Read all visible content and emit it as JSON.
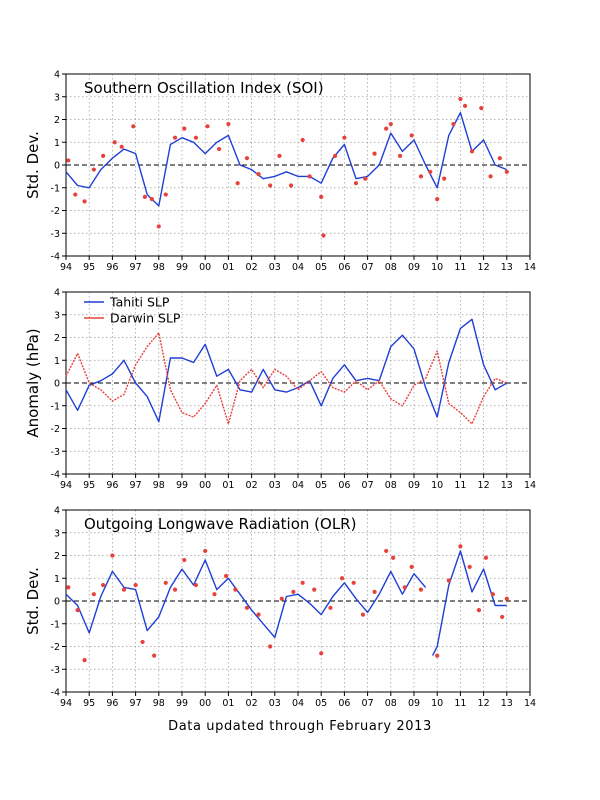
{
  "footer": "Data updated through February 2013",
  "colors": {
    "blue": "#1f3fd6",
    "red": "#e8403a",
    "grid": "#9a9a9a"
  },
  "chart_data": [
    {
      "type": "line",
      "title": "Southern Oscillation Index (SOI)",
      "ylabel": "Std. Dev.",
      "xlim": [
        94,
        114
      ],
      "ylim": [
        -4,
        4
      ],
      "x_tick_labels": [
        "94",
        "95",
        "96",
        "97",
        "98",
        "99",
        "00",
        "01",
        "02",
        "03",
        "04",
        "05",
        "06",
        "07",
        "08",
        "09",
        "10",
        "11",
        "12",
        "13",
        "14"
      ],
      "y_tick_labels": [
        "-4",
        "-3",
        "-2",
        "-1",
        "0",
        "1",
        "2",
        "3",
        "4"
      ],
      "grid": true,
      "series": [
        {
          "style": "line",
          "color": "#1f3fd6",
          "x": [
            94.0,
            94.5,
            95.0,
            95.5,
            96.0,
            96.5,
            97.0,
            97.5,
            98.0,
            98.5,
            99.0,
            99.5,
            100.0,
            100.5,
            101.0,
            101.5,
            102.0,
            102.5,
            103.0,
            103.5,
            104.0,
            104.5,
            105.0,
            105.5,
            106.0,
            106.5,
            107.0,
            107.5,
            108.0,
            108.5,
            109.0,
            109.5,
            110.0,
            110.5,
            111.0,
            111.5,
            112.0,
            112.5,
            113.0
          ],
          "y": [
            -0.3,
            -0.9,
            -1.0,
            -0.2,
            0.3,
            0.7,
            0.5,
            -1.3,
            -1.8,
            0.9,
            1.2,
            1.0,
            0.5,
            1.0,
            1.3,
            0.0,
            -0.2,
            -0.6,
            -0.5,
            -0.3,
            -0.5,
            -0.5,
            -0.8,
            0.3,
            0.9,
            -0.6,
            -0.5,
            0.0,
            1.4,
            0.6,
            1.1,
            0.0,
            -1.0,
            1.3,
            2.3,
            0.6,
            1.1,
            0.0,
            -0.2
          ]
        },
        {
          "style": "points",
          "color": "#e8403a",
          "x": [
            94.1,
            94.4,
            94.8,
            95.2,
            95.6,
            96.1,
            96.4,
            96.9,
            97.4,
            97.7,
            98.0,
            98.3,
            98.7,
            99.1,
            99.6,
            100.1,
            100.6,
            101.0,
            101.4,
            101.8,
            102.3,
            102.8,
            103.2,
            103.7,
            104.2,
            104.5,
            105.0,
            105.1,
            105.6,
            106.0,
            106.5,
            106.9,
            107.3,
            107.8,
            108.0,
            108.4,
            108.9,
            109.3,
            109.7,
            110.0,
            110.3,
            110.7,
            111.0,
            111.2,
            111.5,
            111.9,
            112.3,
            112.7,
            113.0
          ],
          "y": [
            0.2,
            -1.3,
            -1.6,
            -0.2,
            0.4,
            1.0,
            0.8,
            1.7,
            -1.4,
            -1.5,
            -2.7,
            -1.3,
            1.2,
            1.6,
            1.2,
            1.7,
            0.7,
            1.8,
            -0.8,
            0.3,
            -0.4,
            -0.9,
            0.4,
            -0.9,
            1.1,
            -0.5,
            -1.4,
            -3.1,
            0.4,
            1.2,
            -0.8,
            -0.6,
            0.5,
            1.6,
            1.8,
            0.4,
            1.3,
            -0.5,
            -0.3,
            -1.5,
            -0.6,
            1.8,
            2.9,
            2.6,
            0.6,
            2.5,
            -0.5,
            0.3,
            -0.3
          ]
        }
      ]
    },
    {
      "type": "line",
      "title": "",
      "ylabel": "Anomaly (hPa)",
      "xlim": [
        94,
        114
      ],
      "ylim": [
        -4,
        4
      ],
      "x_tick_labels": [
        "94",
        "95",
        "96",
        "97",
        "98",
        "99",
        "00",
        "01",
        "02",
        "03",
        "04",
        "05",
        "06",
        "07",
        "08",
        "09",
        "10",
        "11",
        "12",
        "13",
        "14"
      ],
      "y_tick_labels": [
        "-4",
        "-3",
        "-2",
        "-1",
        "0",
        "1",
        "2",
        "3",
        "4"
      ],
      "grid": true,
      "legend": "top-left",
      "series": [
        {
          "name": "Tahiti SLP",
          "style": "line",
          "color": "#1f3fd6",
          "x": [
            94.0,
            94.5,
            95.0,
            95.5,
            96.0,
            96.5,
            97.0,
            97.5,
            98.0,
            98.5,
            99.0,
            99.5,
            100.0,
            100.5,
            101.0,
            101.5,
            102.0,
            102.5,
            103.0,
            103.5,
            104.0,
            104.5,
            105.0,
            105.5,
            106.0,
            106.5,
            107.0,
            107.5,
            108.0,
            108.5,
            109.0,
            109.5,
            110.0,
            110.5,
            111.0,
            111.5,
            112.0,
            112.5,
            113.0
          ],
          "y": [
            -0.3,
            -1.2,
            -0.1,
            0.1,
            0.4,
            1.0,
            0.0,
            -0.6,
            -1.7,
            1.1,
            1.1,
            0.9,
            1.7,
            0.3,
            0.6,
            -0.3,
            -0.4,
            0.6,
            -0.3,
            -0.4,
            -0.2,
            0.1,
            -1.0,
            0.2,
            0.8,
            0.1,
            0.2,
            0.1,
            1.6,
            2.1,
            1.5,
            -0.2,
            -1.5,
            0.9,
            2.4,
            2.8,
            0.8,
            -0.3,
            0.0
          ]
        },
        {
          "name": "Darwin SLP",
          "style": "line",
          "color": "#e8403a",
          "x": [
            94.0,
            94.5,
            95.0,
            95.5,
            96.0,
            96.5,
            97.0,
            97.5,
            98.0,
            98.5,
            99.0,
            99.5,
            100.0,
            100.5,
            101.0,
            101.5,
            102.0,
            102.5,
            103.0,
            103.5,
            104.0,
            104.5,
            105.0,
            105.5,
            106.0,
            106.5,
            107.0,
            107.5,
            108.0,
            108.5,
            109.0,
            109.5,
            110.0,
            110.5,
            111.0,
            111.5,
            112.0,
            112.5,
            113.0
          ],
          "y": [
            0.3,
            1.3,
            0.0,
            -0.3,
            -0.8,
            -0.5,
            0.8,
            1.6,
            2.2,
            -0.3,
            -1.3,
            -1.5,
            -0.9,
            -0.1,
            -1.8,
            0.1,
            0.6,
            -0.2,
            0.6,
            0.3,
            -0.3,
            0.1,
            0.5,
            -0.2,
            -0.4,
            0.1,
            -0.3,
            0.1,
            -0.7,
            -1.0,
            -0.1,
            0.2,
            1.4,
            -0.9,
            -1.3,
            -1.8,
            -0.6,
            0.2,
            0.0
          ]
        }
      ]
    },
    {
      "type": "line",
      "title": "Outgoing Longwave Radiation (OLR)",
      "ylabel": "Std. Dev.",
      "xlim": [
        94,
        114
      ],
      "ylim": [
        -4,
        4
      ],
      "x_tick_labels": [
        "94",
        "95",
        "96",
        "97",
        "98",
        "99",
        "00",
        "01",
        "02",
        "03",
        "04",
        "05",
        "06",
        "07",
        "08",
        "09",
        "10",
        "11",
        "12",
        "13",
        "14"
      ],
      "y_tick_labels": [
        "-4",
        "-3",
        "-2",
        "-1",
        "0",
        "1",
        "2",
        "3",
        "4"
      ],
      "grid": true,
      "series": [
        {
          "style": "line",
          "color": "#1f3fd6",
          "segments": [
            {
              "x": [
                94.0,
                94.5,
                95.0,
                95.5,
                96.0,
                96.5,
                97.0,
                97.5,
                98.0,
                98.5,
                99.0,
                99.5,
                100.0,
                100.5,
                101.0,
                101.5,
                102.0,
                102.5,
                103.0,
                103.5,
                104.0,
                104.5,
                105.0,
                105.5,
                106.0,
                106.5,
                107.0,
                107.5,
                108.0,
                108.5,
                109.0,
                109.5
              ],
              "y": [
                0.3,
                -0.2,
                -1.4,
                0.2,
                1.3,
                0.6,
                0.5,
                -1.3,
                -0.7,
                0.6,
                1.4,
                0.7,
                1.8,
                0.5,
                1.0,
                0.3,
                -0.4,
                -1.0,
                -1.6,
                0.2,
                0.3,
                -0.1,
                -0.6,
                0.2,
                0.8,
                0.1,
                -0.5,
                0.3,
                1.3,
                0.3,
                1.2,
                0.6
              ]
            },
            {
              "x": [
                109.8,
                110.0,
                110.5,
                111.0,
                111.5,
                112.0,
                112.5,
                113.0
              ],
              "y": [
                -2.4,
                -2.0,
                0.7,
                2.2,
                0.4,
                1.4,
                -0.2,
                -0.2
              ]
            }
          ]
        },
        {
          "style": "points",
          "color": "#e8403a",
          "x": [
            94.1,
            94.5,
            94.8,
            95.2,
            95.6,
            96.0,
            96.5,
            97.0,
            97.3,
            97.8,
            98.3,
            98.7,
            99.1,
            99.6,
            100.0,
            100.4,
            100.9,
            101.3,
            101.8,
            102.3,
            102.8,
            103.3,
            103.8,
            104.2,
            104.7,
            105.0,
            105.4,
            105.9,
            106.4,
            106.8,
            107.3,
            107.8,
            108.1,
            108.6,
            108.9,
            109.3,
            110.0,
            110.5,
            111.0,
            111.4,
            111.8,
            112.1,
            112.4,
            112.8,
            113.0
          ],
          "y": [
            0.6,
            -0.4,
            -2.6,
            0.3,
            0.7,
            2.0,
            0.5,
            0.7,
            -1.8,
            -2.4,
            0.8,
            0.5,
            1.8,
            0.7,
            2.2,
            0.3,
            1.1,
            0.5,
            -0.3,
            -0.6,
            -2.0,
            0.1,
            0.4,
            0.8,
            0.5,
            -2.3,
            -0.3,
            1.0,
            0.8,
            -0.6,
            0.4,
            2.2,
            1.9,
            0.6,
            1.5,
            0.5,
            -2.4,
            0.9,
            2.4,
            1.5,
            -0.4,
            1.9,
            0.3,
            -0.7,
            0.1
          ]
        }
      ]
    }
  ]
}
